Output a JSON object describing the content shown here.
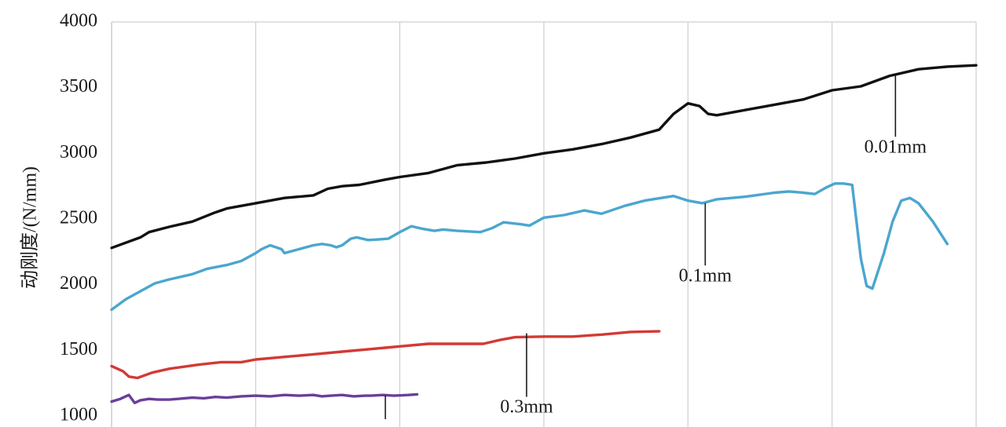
{
  "chart_data": {
    "type": "line",
    "title": "",
    "xlabel": "",
    "ylabel": "动刚度/(N/mm)",
    "ylim": [
      1000,
      4000
    ],
    "yticks": [
      1000,
      1500,
      2000,
      2500,
      3000,
      3500,
      4000
    ],
    "xlim": [
      0,
      30
    ],
    "grid": true,
    "series": [
      {
        "name": "0.01mm",
        "color": "#111111",
        "points": [
          [
            0,
            2280
          ],
          [
            1,
            2360
          ],
          [
            1.3,
            2400
          ],
          [
            2,
            2440
          ],
          [
            2.8,
            2480
          ],
          [
            3.6,
            2550
          ],
          [
            4,
            2580
          ],
          [
            5,
            2620
          ],
          [
            6,
            2660
          ],
          [
            6.5,
            2670
          ],
          [
            7,
            2680
          ],
          [
            7.5,
            2730
          ],
          [
            8,
            2750
          ],
          [
            8.6,
            2760
          ],
          [
            9.5,
            2800
          ],
          [
            10,
            2820
          ],
          [
            11,
            2850
          ],
          [
            11.5,
            2880
          ],
          [
            12,
            2910
          ],
          [
            13,
            2930
          ],
          [
            14,
            2960
          ],
          [
            15,
            3000
          ],
          [
            16,
            3030
          ],
          [
            17,
            3070
          ],
          [
            18,
            3120
          ],
          [
            19,
            3180
          ],
          [
            19.5,
            3300
          ],
          [
            20,
            3380
          ],
          [
            20.4,
            3360
          ],
          [
            20.7,
            3300
          ],
          [
            21,
            3290
          ],
          [
            22,
            3330
          ],
          [
            23,
            3370
          ],
          [
            24,
            3410
          ],
          [
            25,
            3480
          ],
          [
            26,
            3510
          ],
          [
            27,
            3590
          ],
          [
            28,
            3640
          ],
          [
            29,
            3660
          ],
          [
            30,
            3670
          ]
        ],
        "callout": {
          "label": "0.01mm",
          "x": 27.2,
          "y": 3590,
          "label_y": 3090
        }
      },
      {
        "name": "0.1mm",
        "color": "#4ba6cf",
        "points": [
          [
            0,
            1810
          ],
          [
            0.5,
            1890
          ],
          [
            1,
            1950
          ],
          [
            1.5,
            2010
          ],
          [
            2,
            2040
          ],
          [
            2.8,
            2080
          ],
          [
            3.3,
            2120
          ],
          [
            4,
            2150
          ],
          [
            4.5,
            2180
          ],
          [
            5,
            2240
          ],
          [
            5.2,
            2270
          ],
          [
            5.5,
            2300
          ],
          [
            5.9,
            2270
          ],
          [
            6,
            2240
          ],
          [
            6.5,
            2270
          ],
          [
            7,
            2300
          ],
          [
            7.3,
            2310
          ],
          [
            7.6,
            2300
          ],
          [
            7.8,
            2285
          ],
          [
            8,
            2300
          ],
          [
            8.3,
            2350
          ],
          [
            8.5,
            2360
          ],
          [
            8.9,
            2340
          ],
          [
            9.3,
            2345
          ],
          [
            9.6,
            2350
          ],
          [
            10,
            2400
          ],
          [
            10.4,
            2445
          ],
          [
            10.8,
            2425
          ],
          [
            11.2,
            2410
          ],
          [
            11.5,
            2420
          ],
          [
            12,
            2410
          ],
          [
            12.8,
            2400
          ],
          [
            13.2,
            2430
          ],
          [
            13.6,
            2475
          ],
          [
            14.2,
            2460
          ],
          [
            14.5,
            2450
          ],
          [
            15,
            2510
          ],
          [
            15.7,
            2530
          ],
          [
            16.4,
            2565
          ],
          [
            17,
            2540
          ],
          [
            17.8,
            2600
          ],
          [
            18.5,
            2640
          ],
          [
            19.5,
            2675
          ],
          [
            20,
            2640
          ],
          [
            20.5,
            2620
          ],
          [
            21,
            2650
          ],
          [
            22,
            2670
          ],
          [
            23,
            2700
          ],
          [
            23.5,
            2710
          ],
          [
            24,
            2700
          ],
          [
            24.4,
            2690
          ],
          [
            24.8,
            2740
          ],
          [
            25.1,
            2770
          ],
          [
            25.4,
            2770
          ],
          [
            25.7,
            2760
          ],
          [
            26,
            2200
          ],
          [
            26.2,
            1990
          ],
          [
            26.4,
            1970
          ],
          [
            26.8,
            2240
          ],
          [
            27.1,
            2480
          ],
          [
            27.4,
            2640
          ],
          [
            27.7,
            2660
          ],
          [
            28,
            2620
          ],
          [
            28.5,
            2480
          ],
          [
            29,
            2310
          ]
        ],
        "callout": {
          "label": "0.1mm",
          "x": 20.6,
          "y": 2620,
          "label_y": 2110
        }
      },
      {
        "name": "0.3mm",
        "color": "#d23a35",
        "points": [
          [
            0,
            1380
          ],
          [
            0.4,
            1340
          ],
          [
            0.6,
            1300
          ],
          [
            0.9,
            1290
          ],
          [
            1.4,
            1330
          ],
          [
            2,
            1360
          ],
          [
            3,
            1390
          ],
          [
            3.8,
            1410
          ],
          [
            4.5,
            1410
          ],
          [
            5,
            1430
          ],
          [
            6,
            1450
          ],
          [
            7,
            1470
          ],
          [
            8,
            1490
          ],
          [
            9,
            1510
          ],
          [
            9.5,
            1520
          ],
          [
            10,
            1530
          ],
          [
            11,
            1550
          ],
          [
            12,
            1550
          ],
          [
            12.9,
            1550
          ],
          [
            13.5,
            1580
          ],
          [
            14,
            1600
          ],
          [
            15,
            1605
          ],
          [
            16,
            1605
          ],
          [
            17,
            1620
          ],
          [
            18,
            1640
          ],
          [
            19,
            1645
          ]
        ],
        "callout": {
          "label": "0.3mm",
          "x": 14.4,
          "y": 1630,
          "label_y": 1110
        }
      },
      {
        "name": "",
        "color": "#6a3f9a",
        "points": [
          [
            0,
            1110
          ],
          [
            0.3,
            1130
          ],
          [
            0.6,
            1160
          ],
          [
            0.8,
            1100
          ],
          [
            1,
            1120
          ],
          [
            1.3,
            1130
          ],
          [
            1.6,
            1125
          ],
          [
            2,
            1125
          ],
          [
            2.3,
            1130
          ],
          [
            2.8,
            1140
          ],
          [
            3.2,
            1135
          ],
          [
            3.6,
            1145
          ],
          [
            4,
            1140
          ],
          [
            4.5,
            1150
          ],
          [
            5,
            1155
          ],
          [
            5.5,
            1150
          ],
          [
            6,
            1160
          ],
          [
            6.5,
            1155
          ],
          [
            7,
            1160
          ],
          [
            7.3,
            1150
          ],
          [
            7.6,
            1155
          ],
          [
            8,
            1160
          ],
          [
            8.4,
            1150
          ],
          [
            8.8,
            1155
          ],
          [
            9,
            1155
          ],
          [
            9.4,
            1160
          ],
          [
            9.8,
            1155
          ],
          [
            10.3,
            1160
          ],
          [
            10.6,
            1165
          ]
        ],
        "callout": {
          "label": "",
          "x": 9.5,
          "y": 1157,
          "label_y": 940
        }
      }
    ]
  }
}
